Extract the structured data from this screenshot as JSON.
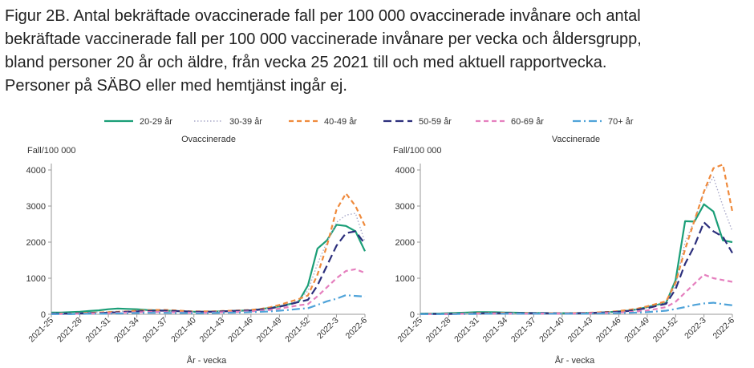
{
  "figure": {
    "title_lines": [
      "Figur 2B. Antal bekräftade ovaccinerade fall per 100 000 ovaccinerade invånare och antal",
      "bekräftade vaccinerade fall per 100 000 vaccinerade invånare per vecka och åldersgrupp,",
      "bland personer 20 år och äldre, från vecka 25 2021 till och med aktuell rapportvecka.",
      "Personer på SÄBO eller med hemtjänst ingår ej."
    ]
  },
  "legend": [
    {
      "name": "20-29 år",
      "color": "#1a9e77",
      "dash": "solid"
    },
    {
      "name": "30-39 år",
      "color": "#a9a9c9",
      "dash": "dotted"
    },
    {
      "name": "40-49 år",
      "color": "#ef8a3c",
      "dash": "dashed"
    },
    {
      "name": "50-59 år",
      "color": "#2c2f7c",
      "dash": "longdash"
    },
    {
      "name": "60-69 år",
      "color": "#e57fbe",
      "dash": "dashed"
    },
    {
      "name": "70+ år",
      "color": "#4fa3d9",
      "dash": "dashdot"
    }
  ],
  "chart_data": [
    {
      "type": "line",
      "title": "Ovaccinerade",
      "ylabel": "Fall/100 000",
      "xlabel": "År - vecka",
      "ylim": [
        0,
        4000
      ],
      "yticks": [
        0,
        1000,
        2000,
        3000,
        4000
      ],
      "xtick_labels": [
        "2021-25",
        "2021-28",
        "2021-31",
        "2021-34",
        "2021-37",
        "2021-40",
        "2021-43",
        "2021-46",
        "2021-49",
        "2021-52",
        "2022-3",
        "2022-6"
      ],
      "x": [
        "2021-25",
        "2021-26",
        "2021-27",
        "2021-28",
        "2021-29",
        "2021-30",
        "2021-31",
        "2021-32",
        "2021-33",
        "2021-34",
        "2021-35",
        "2021-36",
        "2021-37",
        "2021-38",
        "2021-39",
        "2021-40",
        "2021-41",
        "2021-42",
        "2021-43",
        "2021-44",
        "2021-45",
        "2021-46",
        "2021-47",
        "2021-48",
        "2021-49",
        "2021-50",
        "2021-51",
        "2021-52",
        "2022-1",
        "2022-2",
        "2022-3",
        "2022-4",
        "2022-5",
        "2022-6"
      ],
      "series": [
        {
          "name": "20-29 år",
          "values": [
            50,
            50,
            60,
            70,
            90,
            110,
            140,
            160,
            150,
            140,
            120,
            110,
            100,
            90,
            80,
            70,
            70,
            75,
            80,
            90,
            100,
            110,
            140,
            180,
            220,
            280,
            340,
            800,
            1820,
            2050,
            2480,
            2450,
            2300,
            1750
          ]
        },
        {
          "name": "30-39 år",
          "values": [
            30,
            30,
            30,
            40,
            50,
            60,
            70,
            80,
            90,
            100,
            100,
            100,
            90,
            80,
            70,
            60,
            60,
            70,
            80,
            90,
            100,
            110,
            140,
            180,
            230,
            300,
            380,
            650,
            1400,
            2000,
            2550,
            2750,
            2800,
            2000
          ]
        },
        {
          "name": "40-49 år",
          "values": [
            20,
            20,
            20,
            30,
            40,
            50,
            60,
            70,
            80,
            100,
            110,
            120,
            120,
            110,
            90,
            80,
            80,
            80,
            90,
            100,
            110,
            120,
            150,
            190,
            260,
            340,
            420,
            520,
            1100,
            1900,
            2900,
            3350,
            3000,
            2450
          ]
        },
        {
          "name": "50-59 år",
          "values": [
            20,
            20,
            20,
            25,
            30,
            35,
            45,
            55,
            70,
            80,
            90,
            100,
            100,
            90,
            80,
            70,
            70,
            70,
            80,
            90,
            100,
            110,
            130,
            160,
            210,
            270,
            340,
            400,
            800,
            1350,
            1900,
            2250,
            2300,
            1950
          ]
        },
        {
          "name": "60-69 år",
          "values": [
            10,
            10,
            10,
            15,
            20,
            25,
            30,
            40,
            50,
            55,
            60,
            65,
            60,
            55,
            50,
            45,
            45,
            50,
            55,
            60,
            70,
            80,
            100,
            120,
            160,
            200,
            250,
            280,
            500,
            750,
            1000,
            1200,
            1250,
            1150
          ]
        },
        {
          "name": "70+ år",
          "values": [
            5,
            5,
            5,
            10,
            15,
            15,
            20,
            25,
            30,
            35,
            40,
            40,
            40,
            35,
            35,
            30,
            30,
            35,
            40,
            45,
            50,
            60,
            70,
            80,
            100,
            120,
            150,
            170,
            260,
            360,
            430,
            530,
            510,
            490
          ]
        }
      ]
    },
    {
      "type": "line",
      "title": "Vaccinerade",
      "ylabel": "Fall/100 000",
      "xlabel": "År - vecka",
      "ylim": [
        0,
        4000
      ],
      "yticks": [
        0,
        1000,
        2000,
        3000,
        4000
      ],
      "xtick_labels": [
        "2021-25",
        "2021-28",
        "2021-31",
        "2021-34",
        "2021-37",
        "2021-40",
        "2021-43",
        "2021-46",
        "2021-49",
        "2021-52",
        "2022-3",
        "2022-6"
      ],
      "x": [
        "2021-25",
        "2021-26",
        "2021-27",
        "2021-28",
        "2021-29",
        "2021-30",
        "2021-31",
        "2021-32",
        "2021-33",
        "2021-34",
        "2021-35",
        "2021-36",
        "2021-37",
        "2021-38",
        "2021-39",
        "2021-40",
        "2021-41",
        "2021-42",
        "2021-43",
        "2021-44",
        "2021-45",
        "2021-46",
        "2021-47",
        "2021-48",
        "2021-49",
        "2021-50",
        "2021-51",
        "2021-52",
        "2022-1",
        "2022-2",
        "2022-3",
        "2022-4",
        "2022-5",
        "2022-6"
      ],
      "series": [
        {
          "name": "20-29 år",
          "values": [
            20,
            20,
            20,
            30,
            40,
            50,
            60,
            60,
            55,
            50,
            45,
            40,
            35,
            35,
            30,
            30,
            30,
            35,
            40,
            50,
            60,
            80,
            100,
            140,
            200,
            260,
            320,
            950,
            2580,
            2570,
            3050,
            2850,
            2050,
            2000
          ]
        },
        {
          "name": "30-39 år",
          "values": [
            10,
            10,
            10,
            15,
            20,
            25,
            30,
            35,
            35,
            35,
            30,
            30,
            30,
            30,
            30,
            30,
            30,
            35,
            40,
            50,
            60,
            80,
            100,
            140,
            190,
            250,
            320,
            800,
            2000,
            2600,
            3400,
            3800,
            3000,
            2300
          ]
        },
        {
          "name": "40-49 år",
          "values": [
            10,
            10,
            10,
            15,
            20,
            25,
            30,
            35,
            35,
            35,
            30,
            30,
            30,
            30,
            30,
            30,
            30,
            35,
            45,
            55,
            70,
            90,
            120,
            160,
            220,
            290,
            360,
            880,
            1800,
            2600,
            3400,
            4050,
            4150,
            2850
          ]
        },
        {
          "name": "50-59 år",
          "values": [
            10,
            10,
            10,
            10,
            15,
            20,
            25,
            30,
            30,
            30,
            30,
            30,
            30,
            30,
            25,
            25,
            25,
            30,
            35,
            45,
            55,
            70,
            90,
            130,
            170,
            230,
            290,
            700,
            1400,
            1900,
            2550,
            2300,
            2150,
            1700
          ]
        },
        {
          "name": "60-69 år",
          "values": [
            5,
            5,
            5,
            10,
            10,
            15,
            20,
            20,
            20,
            20,
            20,
            20,
            20,
            20,
            20,
            20,
            20,
            25,
            30,
            35,
            40,
            50,
            60,
            80,
            110,
            150,
            200,
            350,
            600,
            850,
            1100,
            1000,
            950,
            900
          ]
        },
        {
          "name": "70+ år",
          "values": [
            5,
            5,
            5,
            5,
            10,
            10,
            10,
            15,
            15,
            15,
            15,
            15,
            15,
            15,
            15,
            15,
            15,
            15,
            20,
            25,
            30,
            35,
            40,
            50,
            60,
            80,
            100,
            150,
            200,
            260,
            300,
            320,
            280,
            250
          ]
        }
      ]
    }
  ]
}
